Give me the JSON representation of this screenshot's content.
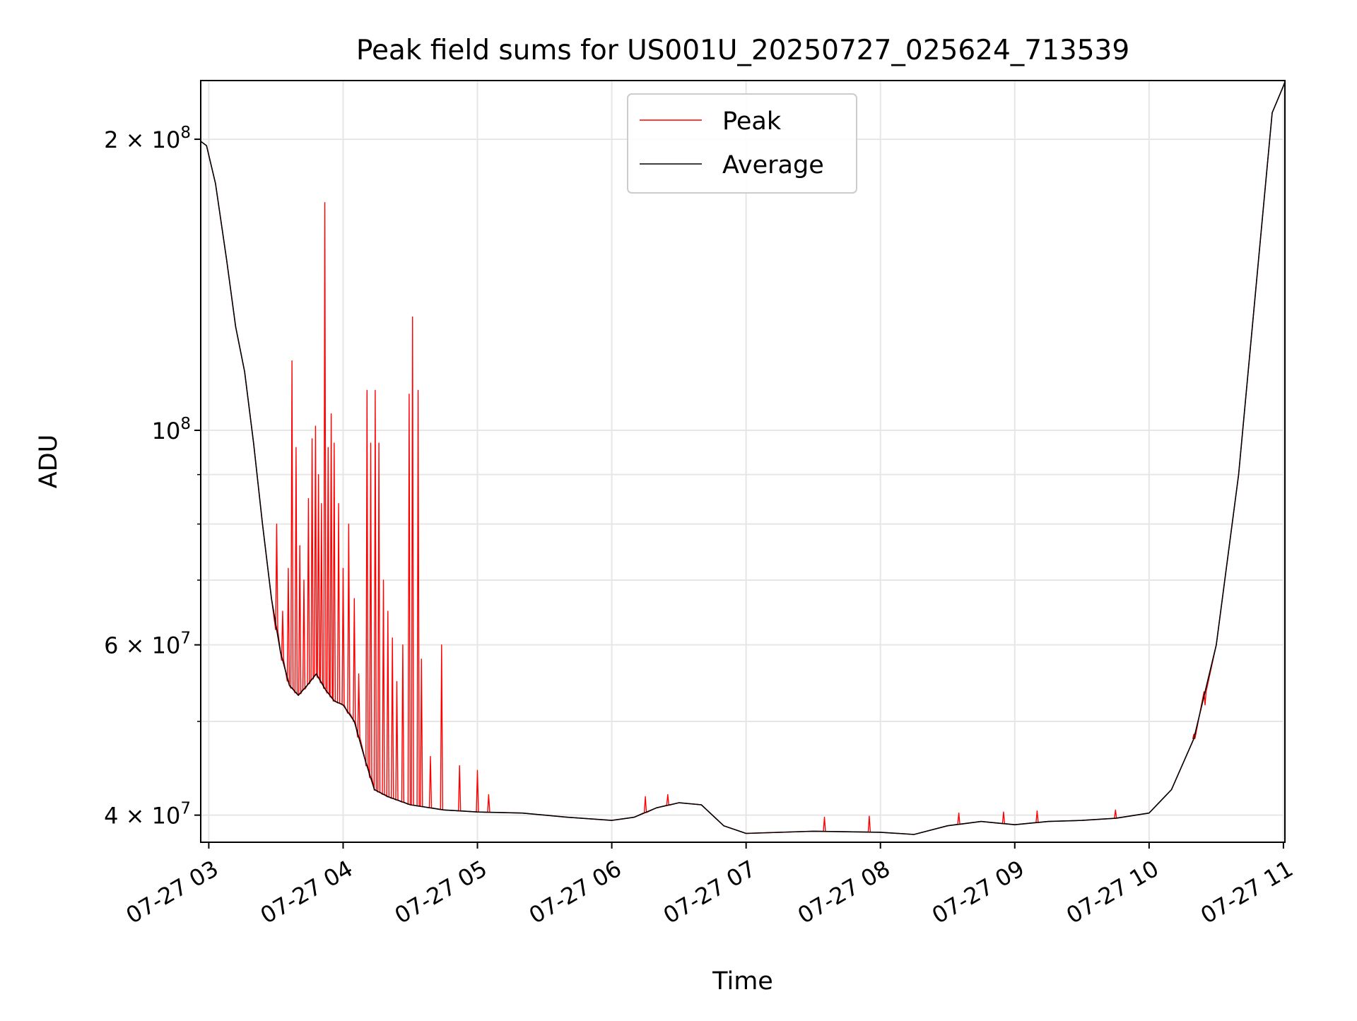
{
  "chart_data": {
    "type": "line",
    "title": "Peak field sums for US001U_20250727_025624_713539",
    "xlabel": "Time",
    "ylabel": "ADU",
    "yscale": "log",
    "xlim": [
      "07-27 02:56:24",
      "07-27 11:00:40"
    ],
    "ylim": [
      37500000,
      230000000
    ],
    "x_ticks": [
      "07-27 03",
      "07-27 04",
      "07-27 05",
      "07-27 06",
      "07-27 07",
      "07-27 08",
      "07-27 09",
      "07-27 10",
      "07-27 11"
    ],
    "y_ticks": [
      {
        "value": 40000000,
        "base": "4 × 10",
        "exp": "7"
      },
      {
        "value": 60000000,
        "base": "6 × 10",
        "exp": "7"
      },
      {
        "value": 100000000,
        "base": "10",
        "exp": "8"
      },
      {
        "value": 200000000,
        "base": "2 × 10",
        "exp": "8"
      }
    ],
    "y_minor_grid": [
      50000000,
      70000000,
      80000000,
      90000000
    ],
    "grid": true,
    "legend_position": "top-center",
    "series": [
      {
        "name": "Average",
        "color": "#000000",
        "points": [
          [
            "07-27 02:56:24",
            199000000
          ],
          [
            "07-27 02:59:00",
            197000000
          ],
          [
            "07-27 03:03:00",
            180000000
          ],
          [
            "07-27 03:08:00",
            150000000
          ],
          [
            "07-27 03:12:00",
            128000000
          ],
          [
            "07-27 03:16:00",
            115000000
          ],
          [
            "07-27 03:20:00",
            97000000
          ],
          [
            "07-27 03:24:00",
            80000000
          ],
          [
            "07-27 03:28:00",
            67000000
          ],
          [
            "07-27 03:32:00",
            59000000
          ],
          [
            "07-27 03:36:00",
            54500000
          ],
          [
            "07-27 03:40:00",
            53200000
          ],
          [
            "07-27 03:44:00",
            54500000
          ],
          [
            "07-27 03:48:00",
            56000000
          ],
          [
            "07-27 03:52:00",
            54000000
          ],
          [
            "07-27 03:56:00",
            52500000
          ],
          [
            "07-27 04:00:00",
            52000000
          ],
          [
            "07-27 04:05:00",
            50000000
          ],
          [
            "07-27 04:10:00",
            45500000
          ],
          [
            "07-27 04:14:00",
            42500000
          ],
          [
            "07-27 04:20:00",
            41800000
          ],
          [
            "07-27 04:30:00",
            41000000
          ],
          [
            "07-27 04:45:00",
            40500000
          ],
          [
            "07-27 05:00:00",
            40300000
          ],
          [
            "07-27 05:20:00",
            40200000
          ],
          [
            "07-27 05:40:00",
            39800000
          ],
          [
            "07-27 06:00:00",
            39500000
          ],
          [
            "07-27 06:10:00",
            39800000
          ],
          [
            "07-27 06:20:00",
            40700000
          ],
          [
            "07-27 06:30:00",
            41200000
          ],
          [
            "07-27 06:40:00",
            41000000
          ],
          [
            "07-27 06:50:00",
            39000000
          ],
          [
            "07-27 07:00:00",
            38300000
          ],
          [
            "07-27 07:30:00",
            38500000
          ],
          [
            "07-27 08:00:00",
            38400000
          ],
          [
            "07-27 08:15:00",
            38200000
          ],
          [
            "07-27 08:30:00",
            39000000
          ],
          [
            "07-27 08:45:00",
            39400000
          ],
          [
            "07-27 09:00:00",
            39100000
          ],
          [
            "07-27 09:15:00",
            39400000
          ],
          [
            "07-27 09:30:00",
            39500000
          ],
          [
            "07-27 09:45:00",
            39700000
          ],
          [
            "07-27 10:00:00",
            40200000
          ],
          [
            "07-27 10:10:00",
            42500000
          ],
          [
            "07-27 10:20:00",
            48000000
          ],
          [
            "07-27 10:30:00",
            60000000
          ],
          [
            "07-27 10:40:00",
            90000000
          ],
          [
            "07-27 10:50:00",
            160000000
          ],
          [
            "07-27 10:55:00",
            213000000
          ],
          [
            "07-27 11:00:40",
            229000000
          ]
        ]
      },
      {
        "name": "Peak",
        "color": "#ff0000",
        "spikes": [
          [
            "07-27 03:30:20",
            80000000
          ],
          [
            "07-27 03:33:00",
            65000000
          ],
          [
            "07-27 03:35:30",
            72000000
          ],
          [
            "07-27 03:37:10",
            118000000
          ],
          [
            "07-27 03:39:00",
            96000000
          ],
          [
            "07-27 03:40:40",
            76000000
          ],
          [
            "07-27 03:42:30",
            70000000
          ],
          [
            "07-27 03:44:30",
            85000000
          ],
          [
            "07-27 03:46:10",
            98000000
          ],
          [
            "07-27 03:47:40",
            101000000
          ],
          [
            "07-27 03:49:00",
            90000000
          ],
          [
            "07-27 03:50:20",
            84000000
          ],
          [
            "07-27 03:51:50",
            172000000
          ],
          [
            "07-27 03:53:20",
            96000000
          ],
          [
            "07-27 03:54:40",
            104000000
          ],
          [
            "07-27 03:56:00",
            97000000
          ],
          [
            "07-27 03:58:00",
            84000000
          ],
          [
            "07-27 04:00:00",
            72000000
          ],
          [
            "07-27 04:02:30",
            80000000
          ],
          [
            "07-27 04:05:00",
            67000000
          ],
          [
            "07-27 04:07:00",
            56000000
          ],
          [
            "07-27 04:10:40",
            110000000
          ],
          [
            "07-27 04:12:20",
            97000000
          ],
          [
            "07-27 04:14:20",
            110000000
          ],
          [
            "07-27 04:16:00",
            97000000
          ],
          [
            "07-27 04:18:00",
            70000000
          ],
          [
            "07-27 04:20:00",
            65000000
          ],
          [
            "07-27 04:22:00",
            61000000
          ],
          [
            "07-27 04:24:00",
            55000000
          ],
          [
            "07-27 04:26:40",
            60000000
          ],
          [
            "07-27 04:29:30",
            109000000
          ],
          [
            "07-27 04:31:00",
            131000000
          ],
          [
            "07-27 04:33:30",
            110000000
          ],
          [
            "07-27 04:35:00",
            58000000
          ],
          [
            "07-27 04:39:00",
            46000000
          ],
          [
            "07-27 04:44:00",
            60000000
          ],
          [
            "07-27 04:52:00",
            45000000
          ],
          [
            "07-27 05:00:00",
            44500000
          ],
          [
            "07-27 05:05:00",
            42000000
          ],
          [
            "07-27 06:15:00",
            41800000
          ],
          [
            "07-27 06:25:00",
            42000000
          ],
          [
            "07-27 07:35:00",
            39800000
          ],
          [
            "07-27 07:55:00",
            39900000
          ],
          [
            "07-27 08:35:00",
            40200000
          ],
          [
            "07-27 08:55:00",
            40300000
          ],
          [
            "07-27 09:10:00",
            40400000
          ],
          [
            "07-27 09:45:00",
            40500000
          ],
          [
            "07-27 10:20:00",
            48500000
          ],
          [
            "07-27 10:25:00",
            52000000
          ]
        ]
      }
    ]
  }
}
